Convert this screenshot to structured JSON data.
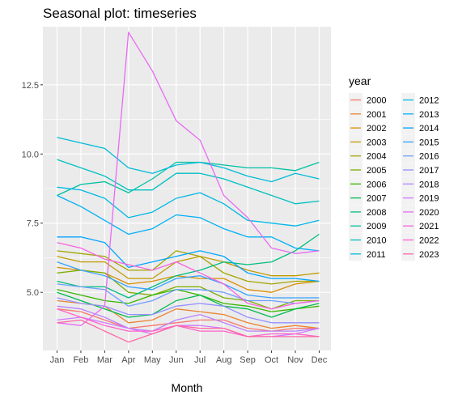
{
  "chart_data": {
    "type": "line",
    "title": "Seasonal plot: timeseries",
    "xlabel": "Month",
    "ylabel": "",
    "categories": [
      "Jan",
      "Feb",
      "Mar",
      "Apr",
      "May",
      "Jun",
      "Jul",
      "Aug",
      "Sep",
      "Oct",
      "Nov",
      "Dec"
    ],
    "ylim": [
      2.9,
      14.6
    ],
    "yticks": [
      5.0,
      7.5,
      10.0,
      12.5
    ],
    "ytick_labels": [
      "5.0",
      "7.5",
      "10.0",
      "12.5"
    ],
    "grid": true,
    "legend": {
      "title": "year",
      "placement": "right"
    },
    "series": [
      {
        "name": "2000",
        "color": "#F8766D",
        "values": [
          4.4,
          4.3,
          4.0,
          3.7,
          3.8,
          3.9,
          4.0,
          4.0,
          3.7,
          3.6,
          3.7,
          3.7
        ]
      },
      {
        "name": "2001",
        "color": "#EA8331",
        "values": [
          4.7,
          4.6,
          4.5,
          3.9,
          4.0,
          4.4,
          4.3,
          4.2,
          3.9,
          3.7,
          3.8,
          3.7
        ]
      },
      {
        "name": "2002",
        "color": "#D89000",
        "values": [
          5.9,
          5.8,
          5.7,
          5.3,
          5.4,
          5.6,
          5.5,
          5.5,
          5.1,
          5.0,
          5.3,
          5.4
        ]
      },
      {
        "name": "2003",
        "color": "#C09B00",
        "values": [
          6.3,
          6.1,
          6.1,
          5.5,
          5.5,
          6.1,
          6.3,
          6.1,
          5.8,
          5.6,
          5.6,
          5.7
        ]
      },
      {
        "name": "2004",
        "color": "#A3A500",
        "values": [
          6.5,
          6.4,
          6.3,
          5.8,
          5.8,
          6.5,
          6.3,
          5.7,
          5.4,
          5.3,
          5.4,
          5.4
        ]
      },
      {
        "name": "2005",
        "color": "#7CAE00",
        "values": [
          5.7,
          5.8,
          5.7,
          5.0,
          4.9,
          5.2,
          5.2,
          4.8,
          4.7,
          4.4,
          4.7,
          4.7
        ]
      },
      {
        "name": "2006",
        "color": "#39B600",
        "values": [
          5.1,
          4.9,
          4.7,
          4.6,
          4.9,
          5.1,
          4.9,
          4.6,
          4.5,
          4.3,
          4.4,
          4.5
        ]
      },
      {
        "name": "2007",
        "color": "#00BB4E",
        "values": [
          5.0,
          4.7,
          4.4,
          4.1,
          4.2,
          4.7,
          4.9,
          4.5,
          4.4,
          4.1,
          4.4,
          4.6
        ]
      },
      {
        "name": "2008",
        "color": "#00BF7D",
        "values": [
          5.4,
          5.2,
          5.2,
          4.8,
          5.2,
          5.6,
          5.8,
          6.1,
          6.0,
          6.1,
          6.5,
          7.1
        ]
      },
      {
        "name": "2009",
        "color": "#00C1A3",
        "values": [
          8.5,
          8.9,
          9.0,
          8.6,
          9.1,
          9.7,
          9.7,
          9.6,
          9.5,
          9.5,
          9.4,
          9.7
        ]
      },
      {
        "name": "2010",
        "color": "#00C0C1",
        "values": [
          9.8,
          9.5,
          9.2,
          8.7,
          8.7,
          9.3,
          9.3,
          9.1,
          8.8,
          8.5,
          8.2,
          8.3
        ]
      },
      {
        "name": "2011",
        "color": "#00BCD8",
        "values": [
          10.6,
          10.4,
          10.2,
          9.5,
          9.3,
          9.6,
          9.7,
          9.5,
          9.2,
          9.0,
          9.3,
          9.1
        ]
      },
      {
        "name": "2012",
        "color": "#00B8E5",
        "values": [
          8.8,
          8.7,
          8.4,
          7.7,
          7.9,
          8.4,
          8.6,
          8.2,
          7.6,
          7.5,
          7.4,
          7.6
        ]
      },
      {
        "name": "2013",
        "color": "#00B0F6",
        "values": [
          8.5,
          8.1,
          7.6,
          7.1,
          7.3,
          7.8,
          7.7,
          7.3,
          7.0,
          7.0,
          6.6,
          6.5
        ]
      },
      {
        "name": "2014",
        "color": "#00A5FF",
        "values": [
          7.0,
          7.0,
          6.8,
          5.9,
          6.1,
          6.3,
          6.5,
          6.3,
          5.7,
          5.5,
          5.5,
          5.4
        ]
      },
      {
        "name": "2015",
        "color": "#35A2FF",
        "values": [
          6.1,
          5.8,
          5.6,
          5.2,
          5.1,
          5.5,
          5.6,
          5.3,
          4.9,
          4.8,
          4.8,
          4.8
        ]
      },
      {
        "name": "2016",
        "color": "#6F9FFF",
        "values": [
          5.3,
          5.2,
          5.1,
          4.5,
          4.7,
          5.1,
          5.1,
          5.0,
          4.7,
          4.7,
          4.6,
          4.7
        ]
      },
      {
        "name": "2017",
        "color": "#9590FF",
        "values": [
          4.8,
          4.6,
          4.5,
          4.2,
          4.2,
          4.5,
          4.6,
          4.5,
          4.1,
          3.9,
          3.9,
          3.9
        ]
      },
      {
        "name": "2018",
        "color": "#B983FF",
        "values": [
          4.5,
          4.4,
          4.1,
          3.7,
          3.6,
          4.0,
          4.2,
          3.9,
          3.6,
          3.6,
          3.6,
          3.7
        ]
      },
      {
        "name": "2019",
        "color": "#D277FF",
        "values": [
          4.0,
          4.1,
          3.9,
          3.7,
          3.5,
          3.8,
          3.8,
          3.7,
          3.4,
          3.4,
          3.5,
          3.7
        ]
      },
      {
        "name": "2020",
        "color": "#E76BF3",
        "values": [
          3.9,
          3.8,
          4.5,
          14.4,
          13.0,
          11.2,
          10.5,
          8.5,
          7.7,
          6.6,
          6.4,
          6.5
        ]
      },
      {
        "name": "2021",
        "color": "#F763E0",
        "values": [
          6.8,
          6.6,
          6.2,
          6.0,
          5.8,
          6.1,
          5.7,
          5.3,
          4.6,
          4.4,
          4.6,
          4.7
        ]
      },
      {
        "name": "2022",
        "color": "#FF61C9",
        "values": [
          4.4,
          4.1,
          3.8,
          3.6,
          3.6,
          3.8,
          3.6,
          3.6,
          3.4,
          3.5,
          3.5,
          3.4
        ]
      },
      {
        "name": "2023",
        "color": "#FF67A4",
        "values": [
          3.9,
          4.0,
          3.6,
          3.2,
          3.5,
          3.8,
          3.7,
          3.7,
          3.4,
          3.4,
          3.4,
          3.4
        ]
      }
    ]
  }
}
